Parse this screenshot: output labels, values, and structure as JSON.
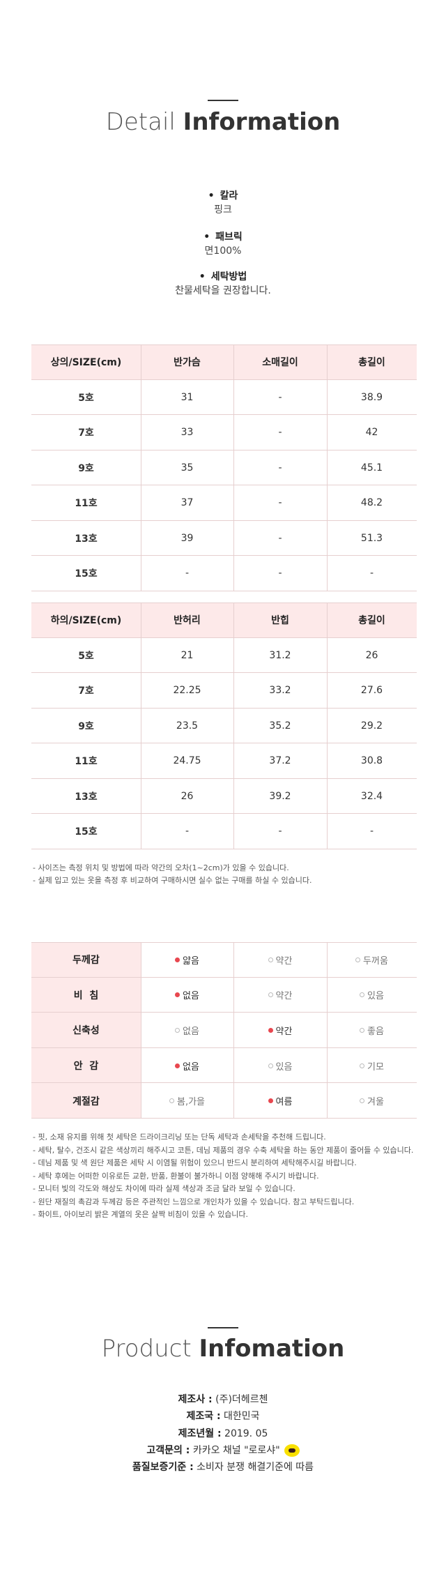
{
  "detail": {
    "title": {
      "light": "Detail",
      "bold": "Information"
    },
    "items": [
      {
        "label": "칼라",
        "value": "핑크"
      },
      {
        "label": "패브릭",
        "value": "면100%"
      },
      {
        "label": "세탁방법",
        "value": "찬물세탁을 권장합니다."
      }
    ]
  },
  "top_table": {
    "header": [
      "상의/SIZE(cm)",
      "반가슴",
      "소매길이",
      "총길이"
    ],
    "rows": [
      [
        "5호",
        "31",
        "-",
        "38.9"
      ],
      [
        "7호",
        "33",
        "-",
        "42"
      ],
      [
        "9호",
        "35",
        "-",
        "45.1"
      ],
      [
        "11호",
        "37",
        "-",
        "48.2"
      ],
      [
        "13호",
        "39",
        "-",
        "51.3"
      ],
      [
        "15호",
        "-",
        "-",
        "-"
      ]
    ]
  },
  "bottom_table": {
    "header": [
      "하의/SIZE(cm)",
      "반허리",
      "반힙",
      "총길이"
    ],
    "rows": [
      [
        "5호",
        "21",
        "31.2",
        "26"
      ],
      [
        "7호",
        "22.25",
        "33.2",
        "27.6"
      ],
      [
        "9호",
        "23.5",
        "35.2",
        "29.2"
      ],
      [
        "11호",
        "24.75",
        "37.2",
        "30.8"
      ],
      [
        "13호",
        "26",
        "39.2",
        "32.4"
      ],
      [
        "15호",
        "-",
        "-",
        "-"
      ]
    ]
  },
  "size_notes": [
    "- 사이즈는 측정 위치 및 방법에 따라 약간의 오차(1~2cm)가 있을 수 있습니다.",
    "- 실제 입고 있는 옷을 측정 후 비교하여 구매하시면 실수 없는 구매를 하실 수 있습니다."
  ],
  "feel_table": {
    "rows": [
      {
        "label": "두께감",
        "options": [
          {
            "text": "얇음",
            "selected": true
          },
          {
            "text": "약간",
            "selected": false
          },
          {
            "text": "두꺼움",
            "selected": false
          }
        ]
      },
      {
        "label": "비  침",
        "options": [
          {
            "text": "없음",
            "selected": true
          },
          {
            "text": "약간",
            "selected": false
          },
          {
            "text": "있음",
            "selected": false
          }
        ]
      },
      {
        "label": "신축성",
        "options": [
          {
            "text": "없음",
            "selected": false
          },
          {
            "text": "약간",
            "selected": true
          },
          {
            "text": "좋음",
            "selected": false
          }
        ]
      },
      {
        "label": "안  감",
        "options": [
          {
            "text": "없음",
            "selected": true
          },
          {
            "text": "있음",
            "selected": false
          },
          {
            "text": "기모",
            "selected": false
          }
        ]
      },
      {
        "label": "계절감",
        "options": [
          {
            "text": "봄,가을",
            "selected": false
          },
          {
            "text": "여름",
            "selected": true
          },
          {
            "text": "겨울",
            "selected": false
          }
        ]
      }
    ]
  },
  "care_notes": [
    "- 핏, 소재 유지를 위해 첫 세탁은 드라이크리닝 또는 단독 세탁과 손세탁을 추천해 드립니다.",
    "- 세탁, 탈수, 건조시 같은 색상끼리 해주시고 코튼, 데님 제품의 경우 수축 세탁을 하는 동안 제품이 줄어들 수 있습니다.",
    "- 데님 제품 및 색 원단 제품은 세탁 시 이염될 위험이 있으니 반드시 분리하여 세탁해주시길 바랍니다.",
    "- 세탁 후에는 어떠한 이유로든 교환, 반품, 환불이 불가하니 이점 양해해 주시기 바랍니다.",
    "- 모니터 빛의 각도와 해상도 차이에 따라 실제 색상과 조금 달라 보일 수 있습니다.",
    "- 원단 재질의 촉감과 두께감 등은 주관적인 느낌으로 개인차가 있을 수 있습니다. 참고 부탁드립니다.",
    "- 화이트, 아이보리 밝은 계열의 옷은 살짝 비침이 있을 수 있습니다."
  ],
  "product": {
    "title": {
      "light": "Product",
      "bold": "Infomation"
    },
    "items": [
      {
        "label": "제조사 :",
        "value": "(주)더헤르첸"
      },
      {
        "label": "제조국 :",
        "value": "대한민국"
      },
      {
        "label": "제조년월 :",
        "value": "2019. 05"
      },
      {
        "label": "고객문의 :",
        "value": "카카오 채널 \"로로샤\""
      },
      {
        "label": "품질보증기준 :",
        "value": "소비자 분쟁 해결기준에 따름"
      }
    ]
  }
}
